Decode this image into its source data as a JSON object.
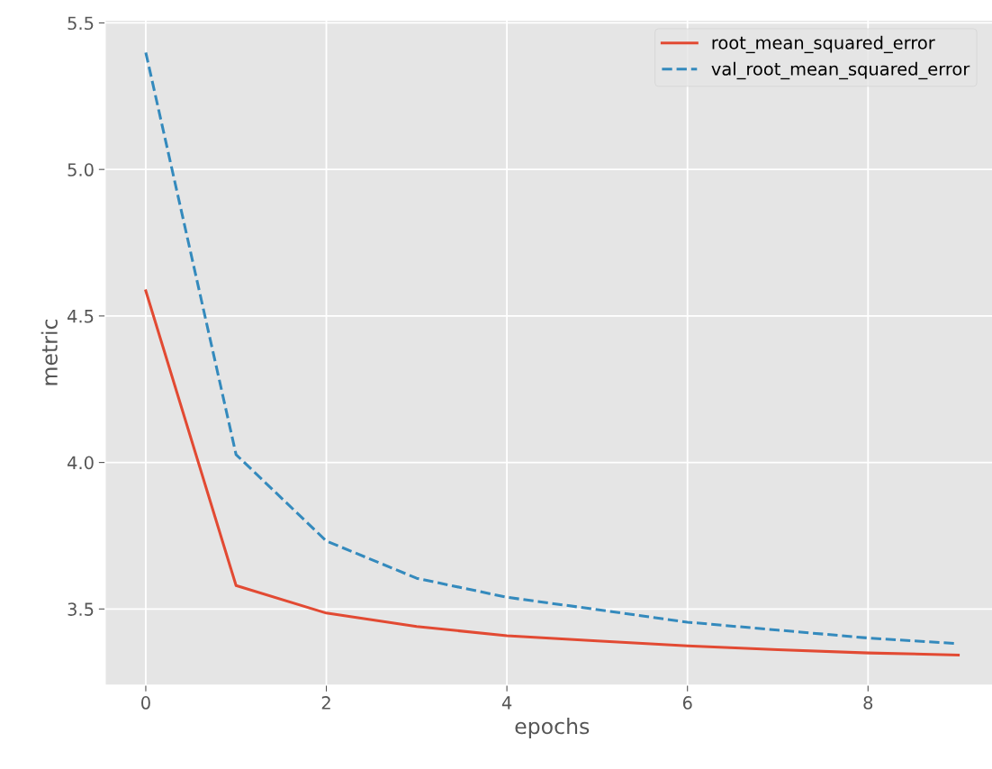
{
  "chart_data": {
    "type": "line",
    "xlabel": "epochs",
    "ylabel": "metric",
    "x": [
      0,
      1,
      2,
      3,
      4,
      5,
      6,
      7,
      8,
      9
    ],
    "series": [
      {
        "name": "root_mean_squared_error",
        "color": "#e24a33",
        "line_style": "solid",
        "values": [
          4.586,
          3.58,
          3.486,
          3.44,
          3.409,
          3.391,
          3.374,
          3.361,
          3.35,
          3.343
        ]
      },
      {
        "name": "val_root_mean_squared_error",
        "color": "#348abd",
        "line_style": "dashed",
        "values": [
          5.399,
          4.027,
          3.732,
          3.605,
          3.54,
          3.498,
          3.455,
          3.428,
          3.401,
          3.382
        ]
      }
    ],
    "xlim": [
      -0.45,
      9.45
    ],
    "ylim": [
      3.24,
      5.51
    ],
    "xticks": [
      0,
      2,
      4,
      6,
      8
    ],
    "yticks": [
      3.5,
      {
        "value": 4,
        "label": "4.0"
      },
      4.5,
      {
        "value": 5,
        "label": "5.0"
      },
      5.5
    ],
    "grid": true,
    "legend": "top right"
  }
}
